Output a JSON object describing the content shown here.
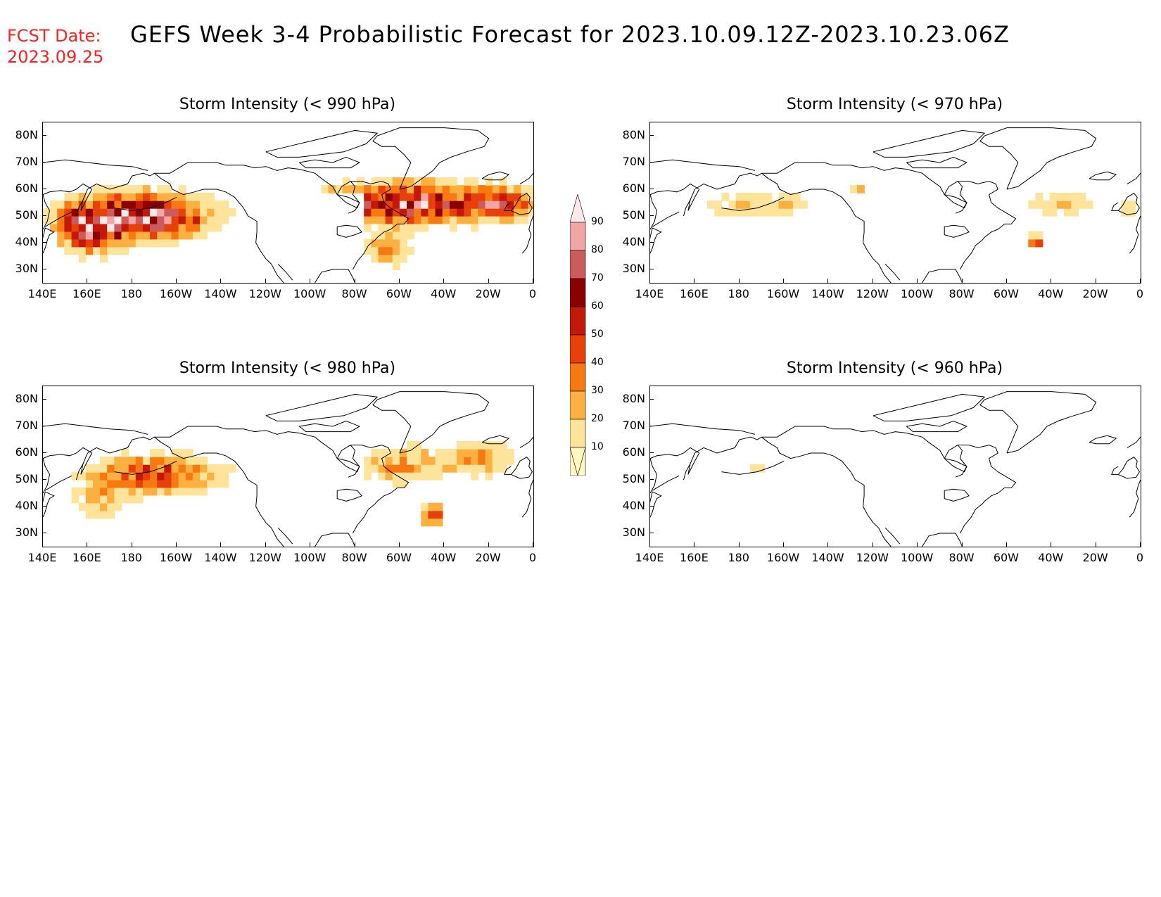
{
  "fcst_label": "FCST Date:",
  "fcst_date": "2023.09.25",
  "main_title": "GEFS Week 3-4 Probabilistic Forecast for 2023.10.09.12Z-2023.10.23.06Z",
  "x_ticks": [
    "140E",
    "160E",
    "180",
    "160W",
    "140W",
    "120W",
    "100W",
    "80W",
    "60W",
    "40W",
    "20W",
    "0"
  ],
  "y_ticks": [
    "80N",
    "70N",
    "60N",
    "50N",
    "40N",
    "30N"
  ],
  "panels": [
    {
      "title": "Storm Intensity (< 990 hPa)"
    },
    {
      "title": "Storm Intensity (< 970 hPa)"
    },
    {
      "title": "Storm Intensity (< 980 hPa)"
    },
    {
      "title": "Storm Intensity (< 960 hPa)"
    }
  ],
  "colorbar": {
    "levels": [
      "10",
      "20",
      "30",
      "40",
      "50",
      "60",
      "70",
      "80",
      "90"
    ],
    "colors": [
      "#fff7c2",
      "#fde49a",
      "#fbb040",
      "#f7790f",
      "#e8400a",
      "#c41808",
      "#8b0000",
      "#cc5b5b",
      "#f2a5a5",
      "#ffe8ea"
    ]
  },
  "colors": {
    "title_red": "#ff2020",
    "coast": "#000000"
  }
}
